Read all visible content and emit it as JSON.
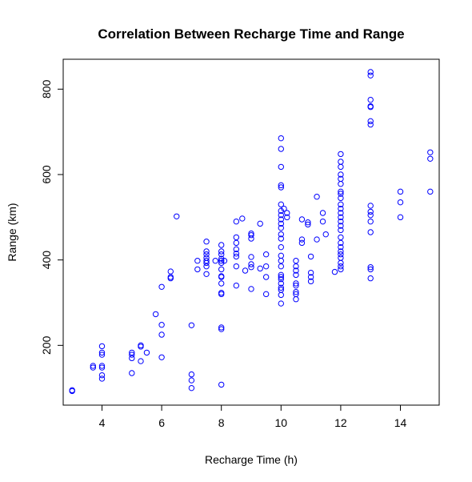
{
  "chart_data": {
    "type": "scatter",
    "title": "Correlation Between Recharge Time and Range",
    "xlabel": "Recharge Time (h)",
    "ylabel": "Range (km)",
    "xlim": [
      2.7,
      15.3
    ],
    "ylim": [
      60,
      870
    ],
    "xticks": [
      4,
      6,
      8,
      10,
      12,
      14
    ],
    "yticks": [
      200,
      400,
      600,
      800
    ],
    "grid": false,
    "legend": "none",
    "point_color": "#0000ff",
    "points": [
      [
        3,
        93
      ],
      [
        3,
        95
      ],
      [
        3.7,
        148
      ],
      [
        3.7,
        152
      ],
      [
        4,
        122
      ],
      [
        4,
        130
      ],
      [
        4,
        148
      ],
      [
        4,
        152
      ],
      [
        4,
        178
      ],
      [
        4,
        183
      ],
      [
        4,
        198
      ],
      [
        5,
        135
      ],
      [
        5,
        170
      ],
      [
        5,
        178
      ],
      [
        5,
        183
      ],
      [
        5.3,
        163
      ],
      [
        5.3,
        197
      ],
      [
        5.3,
        200
      ],
      [
        5.5,
        183
      ],
      [
        5.8,
        273
      ],
      [
        6,
        172
      ],
      [
        6,
        225
      ],
      [
        6,
        248
      ],
      [
        6,
        337
      ],
      [
        6.3,
        357
      ],
      [
        6.3,
        360
      ],
      [
        6.3,
        373
      ],
      [
        6.5,
        502
      ],
      [
        7,
        100
      ],
      [
        7,
        118
      ],
      [
        7,
        132
      ],
      [
        7,
        247
      ],
      [
        7.2,
        378
      ],
      [
        7.2,
        398
      ],
      [
        7.5,
        367
      ],
      [
        7.5,
        385
      ],
      [
        7.5,
        393
      ],
      [
        7.5,
        398
      ],
      [
        7.5,
        405
      ],
      [
        7.5,
        413
      ],
      [
        7.5,
        420
      ],
      [
        7.5,
        443
      ],
      [
        7.8,
        398
      ],
      [
        8,
        108
      ],
      [
        8,
        238
      ],
      [
        8,
        242
      ],
      [
        8,
        320
      ],
      [
        8,
        323
      ],
      [
        8,
        345
      ],
      [
        8,
        360
      ],
      [
        8,
        362
      ],
      [
        8,
        378
      ],
      [
        8,
        393
      ],
      [
        8,
        398
      ],
      [
        8,
        403
      ],
      [
        8,
        413
      ],
      [
        8,
        420
      ],
      [
        8,
        435
      ],
      [
        8.1,
        398
      ],
      [
        8.5,
        340
      ],
      [
        8.5,
        385
      ],
      [
        8.5,
        408
      ],
      [
        8.5,
        415
      ],
      [
        8.5,
        425
      ],
      [
        8.5,
        440
      ],
      [
        8.5,
        453
      ],
      [
        8.5,
        490
      ],
      [
        8.7,
        497
      ],
      [
        8.8,
        375
      ],
      [
        9,
        332
      ],
      [
        9,
        383
      ],
      [
        9,
        390
      ],
      [
        9,
        407
      ],
      [
        9,
        450
      ],
      [
        9,
        458
      ],
      [
        9,
        462
      ],
      [
        9.3,
        485
      ],
      [
        9.3,
        380
      ],
      [
        9.5,
        320
      ],
      [
        9.5,
        360
      ],
      [
        9.5,
        385
      ],
      [
        9.5,
        413
      ],
      [
        10,
        298
      ],
      [
        10,
        318
      ],
      [
        10,
        330
      ],
      [
        10,
        335
      ],
      [
        10,
        345
      ],
      [
        10,
        355
      ],
      [
        10,
        360
      ],
      [
        10,
        365
      ],
      [
        10,
        385
      ],
      [
        10,
        398
      ],
      [
        10,
        410
      ],
      [
        10,
        430
      ],
      [
        10,
        450
      ],
      [
        10,
        460
      ],
      [
        10,
        475
      ],
      [
        10,
        485
      ],
      [
        10,
        495
      ],
      [
        10,
        505
      ],
      [
        10,
        515
      ],
      [
        10,
        530
      ],
      [
        10,
        570
      ],
      [
        10,
        575
      ],
      [
        10,
        618
      ],
      [
        10,
        660
      ],
      [
        10,
        685
      ],
      [
        10.1,
        520
      ],
      [
        10.2,
        500
      ],
      [
        10.2,
        510
      ],
      [
        10.5,
        308
      ],
      [
        10.5,
        320
      ],
      [
        10.5,
        325
      ],
      [
        10.5,
        340
      ],
      [
        10.5,
        345
      ],
      [
        10.5,
        365
      ],
      [
        10.5,
        375
      ],
      [
        10.5,
        385
      ],
      [
        10.5,
        398
      ],
      [
        10.7,
        440
      ],
      [
        10.7,
        448
      ],
      [
        10.7,
        495
      ],
      [
        10.9,
        483
      ],
      [
        10.9,
        488
      ],
      [
        11,
        350
      ],
      [
        11,
        360
      ],
      [
        11,
        370
      ],
      [
        11,
        408
      ],
      [
        11.2,
        548
      ],
      [
        11.2,
        448
      ],
      [
        11.4,
        490
      ],
      [
        11.4,
        510
      ],
      [
        11.5,
        460
      ],
      [
        11.8,
        372
      ],
      [
        12,
        378
      ],
      [
        12,
        385
      ],
      [
        12,
        393
      ],
      [
        12,
        405
      ],
      [
        12,
        413
      ],
      [
        12,
        420
      ],
      [
        12,
        430
      ],
      [
        12,
        440
      ],
      [
        12,
        453
      ],
      [
        12,
        470
      ],
      [
        12,
        480
      ],
      [
        12,
        490
      ],
      [
        12,
        500
      ],
      [
        12,
        510
      ],
      [
        12,
        520
      ],
      [
        12,
        530
      ],
      [
        12,
        545
      ],
      [
        12,
        555
      ],
      [
        12,
        560
      ],
      [
        12,
        578
      ],
      [
        12,
        590
      ],
      [
        12,
        600
      ],
      [
        12,
        618
      ],
      [
        12,
        630
      ],
      [
        12,
        648
      ],
      [
        13,
        357
      ],
      [
        13,
        378
      ],
      [
        13,
        383
      ],
      [
        13,
        465
      ],
      [
        13,
        490
      ],
      [
        13,
        505
      ],
      [
        13,
        513
      ],
      [
        13,
        527
      ],
      [
        13,
        717
      ],
      [
        13,
        725
      ],
      [
        13,
        758
      ],
      [
        13,
        760
      ],
      [
        13,
        775
      ],
      [
        13,
        832
      ],
      [
        13,
        840
      ],
      [
        14,
        500
      ],
      [
        14,
        535
      ],
      [
        14,
        560
      ],
      [
        15,
        560
      ],
      [
        15,
        637
      ],
      [
        15,
        652
      ]
    ]
  }
}
